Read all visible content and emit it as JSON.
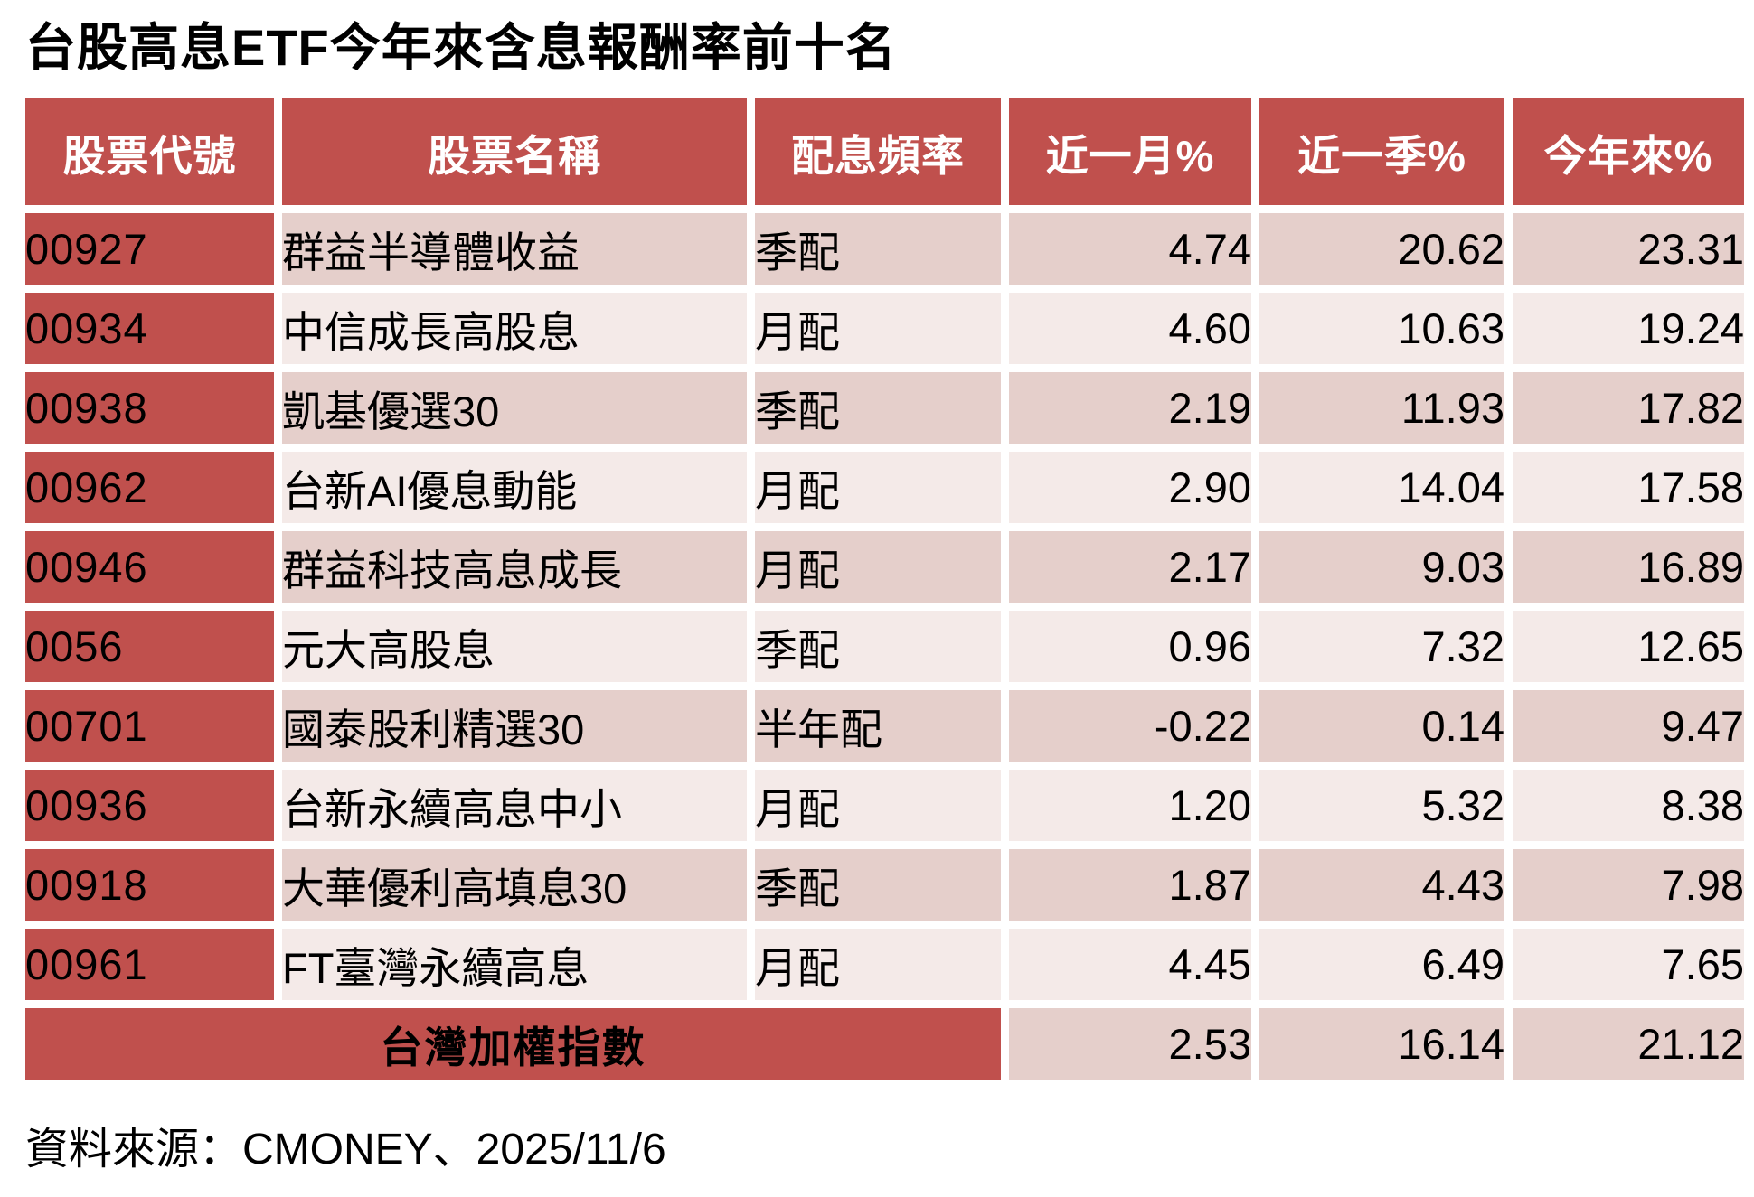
{
  "title": "台股高息ETF今年來含息報酬率前十名",
  "source": "資料來源：CMONEY、2025/11/6",
  "colors": {
    "header_red": "#C0504D",
    "row_odd_pink": "#E5CFCB",
    "row_even_pink": "#F4EAE8",
    "header_text": "#FFFFFF",
    "body_text": "#000000"
  },
  "chart_data": {
    "type": "table",
    "title": "台股高息ETF今年來含息報酬率前十名",
    "columns": [
      "股票代號",
      "股票名稱",
      "配息頻率",
      "近一月%",
      "近一季%",
      "今年來%"
    ],
    "rows": [
      [
        "00927",
        "群益半導體收益",
        "季配",
        "4.74",
        "20.62",
        "23.31"
      ],
      [
        "00934",
        "中信成長高股息",
        "月配",
        "4.60",
        "10.63",
        "19.24"
      ],
      [
        "00938",
        "凱基優選30",
        "季配",
        "2.19",
        "11.93",
        "17.82"
      ],
      [
        "00962",
        "台新AI優息動能",
        "月配",
        "2.90",
        "14.04",
        "17.58"
      ],
      [
        "00946",
        "群益科技高息成長",
        "月配",
        "2.17",
        "9.03",
        "16.89"
      ],
      [
        "0056",
        "元大高股息",
        "季配",
        "0.96",
        "7.32",
        "12.65"
      ],
      [
        "00701",
        "國泰股利精選30",
        "半年配",
        "-0.22",
        "0.14",
        "9.47"
      ],
      [
        "00936",
        "台新永續高息中小",
        "月配",
        "1.20",
        "5.32",
        "8.38"
      ],
      [
        "00918",
        "大華優利高填息30",
        "季配",
        "1.87",
        "4.43",
        "7.98"
      ],
      [
        "00961",
        "FT臺灣永續高息",
        "月配",
        "4.45",
        "6.49",
        "7.65"
      ]
    ],
    "footer_row": {
      "label": "台灣加權指數",
      "values": [
        "2.53",
        "16.14",
        "21.12"
      ]
    },
    "source": "資料來源：CMONEY、2025/11/6"
  }
}
